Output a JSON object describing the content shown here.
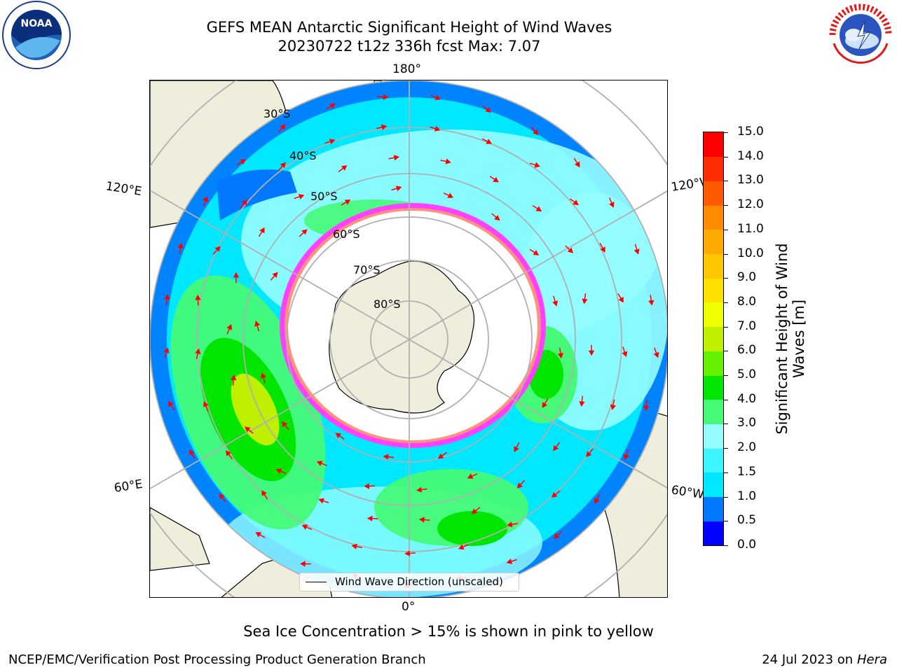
{
  "title_line1": "GEFS MEAN Antarctic Significant Height of Wind Waves",
  "title_line2": "20230722 t12z 336h fcst   Max: 7.07",
  "longitude_labels": {
    "top": "180°",
    "bottom": "0°",
    "upper_left": "120°E",
    "lower_left": "60°E",
    "upper_right": "120°W",
    "lower_right": "60°W"
  },
  "latitude_labels": [
    "30°S",
    "40°S",
    "50°S",
    "60°S",
    "70°S",
    "80°S"
  ],
  "legend": {
    "label": "Wind Wave Direction (unscaled)",
    "line_color": "#000000"
  },
  "colorbar": {
    "label_line1": "Significant Height of Wind",
    "label_line2": "Waves [m]",
    "ticks": [
      "15.0",
      "14.0",
      "13.0",
      "12.0",
      "11.0",
      "10.0",
      "9.0",
      "8.0",
      "7.0",
      "6.0",
      "5.0",
      "4.0",
      "3.0",
      "2.0",
      "1.5",
      "1.0",
      "0.5",
      "0.0"
    ],
    "colors_bottom_to_top": [
      "#0000ff",
      "#0078ff",
      "#00e8ff",
      "#3cf5ff",
      "#96fdff",
      "#46fa78",
      "#00e600",
      "#64f000",
      "#bef000",
      "#f0ff00",
      "#ffe100",
      "#ffc800",
      "#ffaa00",
      "#ff8c00",
      "#ff5a00",
      "#ff2d00",
      "#ff0000"
    ]
  },
  "colors": {
    "land": "#efeedd",
    "sea_ice": "#ff40ff",
    "arrow": "#ff0000",
    "grid": "#b0b0b0"
  },
  "subtitle": "Sea Ice Concentration > 15% is shown in pink to yellow",
  "credit": "NCEP/EMC/Verification Post Processing Product Generation Branch",
  "date_text": "24 Jul 2023 on ",
  "date_machine": "Hera",
  "logos": {
    "left": "NOAA",
    "right": "NATIONAL WEATHER SERVICE"
  }
}
